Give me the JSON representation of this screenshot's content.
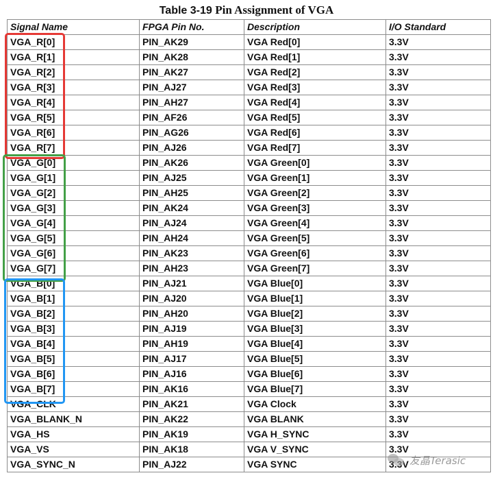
{
  "title": {
    "prefix": "Table 3-19",
    "text": "Pin Assignment of VGA"
  },
  "table": {
    "headers": [
      "Signal Name",
      "FPGA Pin No.",
      "Description",
      "I/O Standard"
    ],
    "rows": [
      [
        "VGA_R[0]",
        "PIN_AK29",
        "VGA Red[0]",
        "3.3V"
      ],
      [
        "VGA_R[1]",
        "PIN_AK28",
        "VGA Red[1]",
        "3.3V"
      ],
      [
        "VGA_R[2]",
        "PIN_AK27",
        "VGA Red[2]",
        "3.3V"
      ],
      [
        "VGA_R[3]",
        "PIN_AJ27",
        "VGA Red[3]",
        "3.3V"
      ],
      [
        "VGA_R[4]",
        "PIN_AH27",
        "VGA Red[4]",
        "3.3V"
      ],
      [
        "VGA_R[5]",
        "PIN_AF26",
        "VGA Red[5]",
        "3.3V"
      ],
      [
        "VGA_R[6]",
        "PIN_AG26",
        "VGA Red[6]",
        "3.3V"
      ],
      [
        "VGA_R[7]",
        "PIN_AJ26",
        "VGA Red[7]",
        "3.3V"
      ],
      [
        "VGA_G[0]",
        "PIN_AK26",
        "VGA Green[0]",
        "3.3V"
      ],
      [
        "VGA_G[1]",
        "PIN_AJ25",
        "VGA Green[1]",
        "3.3V"
      ],
      [
        "VGA_G[2]",
        "PIN_AH25",
        "VGA Green[2]",
        "3.3V"
      ],
      [
        "VGA_G[3]",
        "PIN_AK24",
        "VGA Green[3]",
        "3.3V"
      ],
      [
        "VGA_G[4]",
        "PIN_AJ24",
        "VGA Green[4]",
        "3.3V"
      ],
      [
        "VGA_G[5]",
        "PIN_AH24",
        "VGA Green[5]",
        "3.3V"
      ],
      [
        "VGA_G[6]",
        "PIN_AK23",
        "VGA Green[6]",
        "3.3V"
      ],
      [
        "VGA_G[7]",
        "PIN_AH23",
        "VGA Green[7]",
        "3.3V"
      ],
      [
        "VGA_B[0]",
        "PIN_AJ21",
        "VGA Blue[0]",
        "3.3V"
      ],
      [
        "VGA_B[1]",
        "PIN_AJ20",
        "VGA Blue[1]",
        "3.3V"
      ],
      [
        "VGA_B[2]",
        "PIN_AH20",
        "VGA Blue[2]",
        "3.3V"
      ],
      [
        "VGA_B[3]",
        "PIN_AJ19",
        "VGA Blue[3]",
        "3.3V"
      ],
      [
        "VGA_B[4]",
        "PIN_AH19",
        "VGA Blue[4]",
        "3.3V"
      ],
      [
        "VGA_B[5]",
        "PIN_AJ17",
        "VGA Blue[5]",
        "3.3V"
      ],
      [
        "VGA_B[6]",
        "PIN_AJ16",
        "VGA Blue[6]",
        "3.3V"
      ],
      [
        "VGA_B[7]",
        "PIN_AK16",
        "VGA Blue[7]",
        "3.3V"
      ],
      [
        "VGA_CLK",
        "PIN_AK21",
        "VGA Clock",
        "3.3V"
      ],
      [
        "VGA_BLANK_N",
        "PIN_AK22",
        "VGA BLANK",
        "3.3V"
      ],
      [
        "VGA_HS",
        "PIN_AK19",
        "VGA H_SYNC",
        "3.3V"
      ],
      [
        "VGA_VS",
        "PIN_AK18",
        "VGA V_SYNC",
        "3.3V"
      ],
      [
        "VGA_SYNC_N",
        "PIN_AJ22",
        "VGA SYNC",
        "3.3V"
      ]
    ]
  },
  "highlights": {
    "red": "#e53935",
    "green": "#43a047",
    "blue": "#2196f3"
  },
  "watermark": {
    "icon": "wechat-icon",
    "text": "友晶Terasic"
  }
}
